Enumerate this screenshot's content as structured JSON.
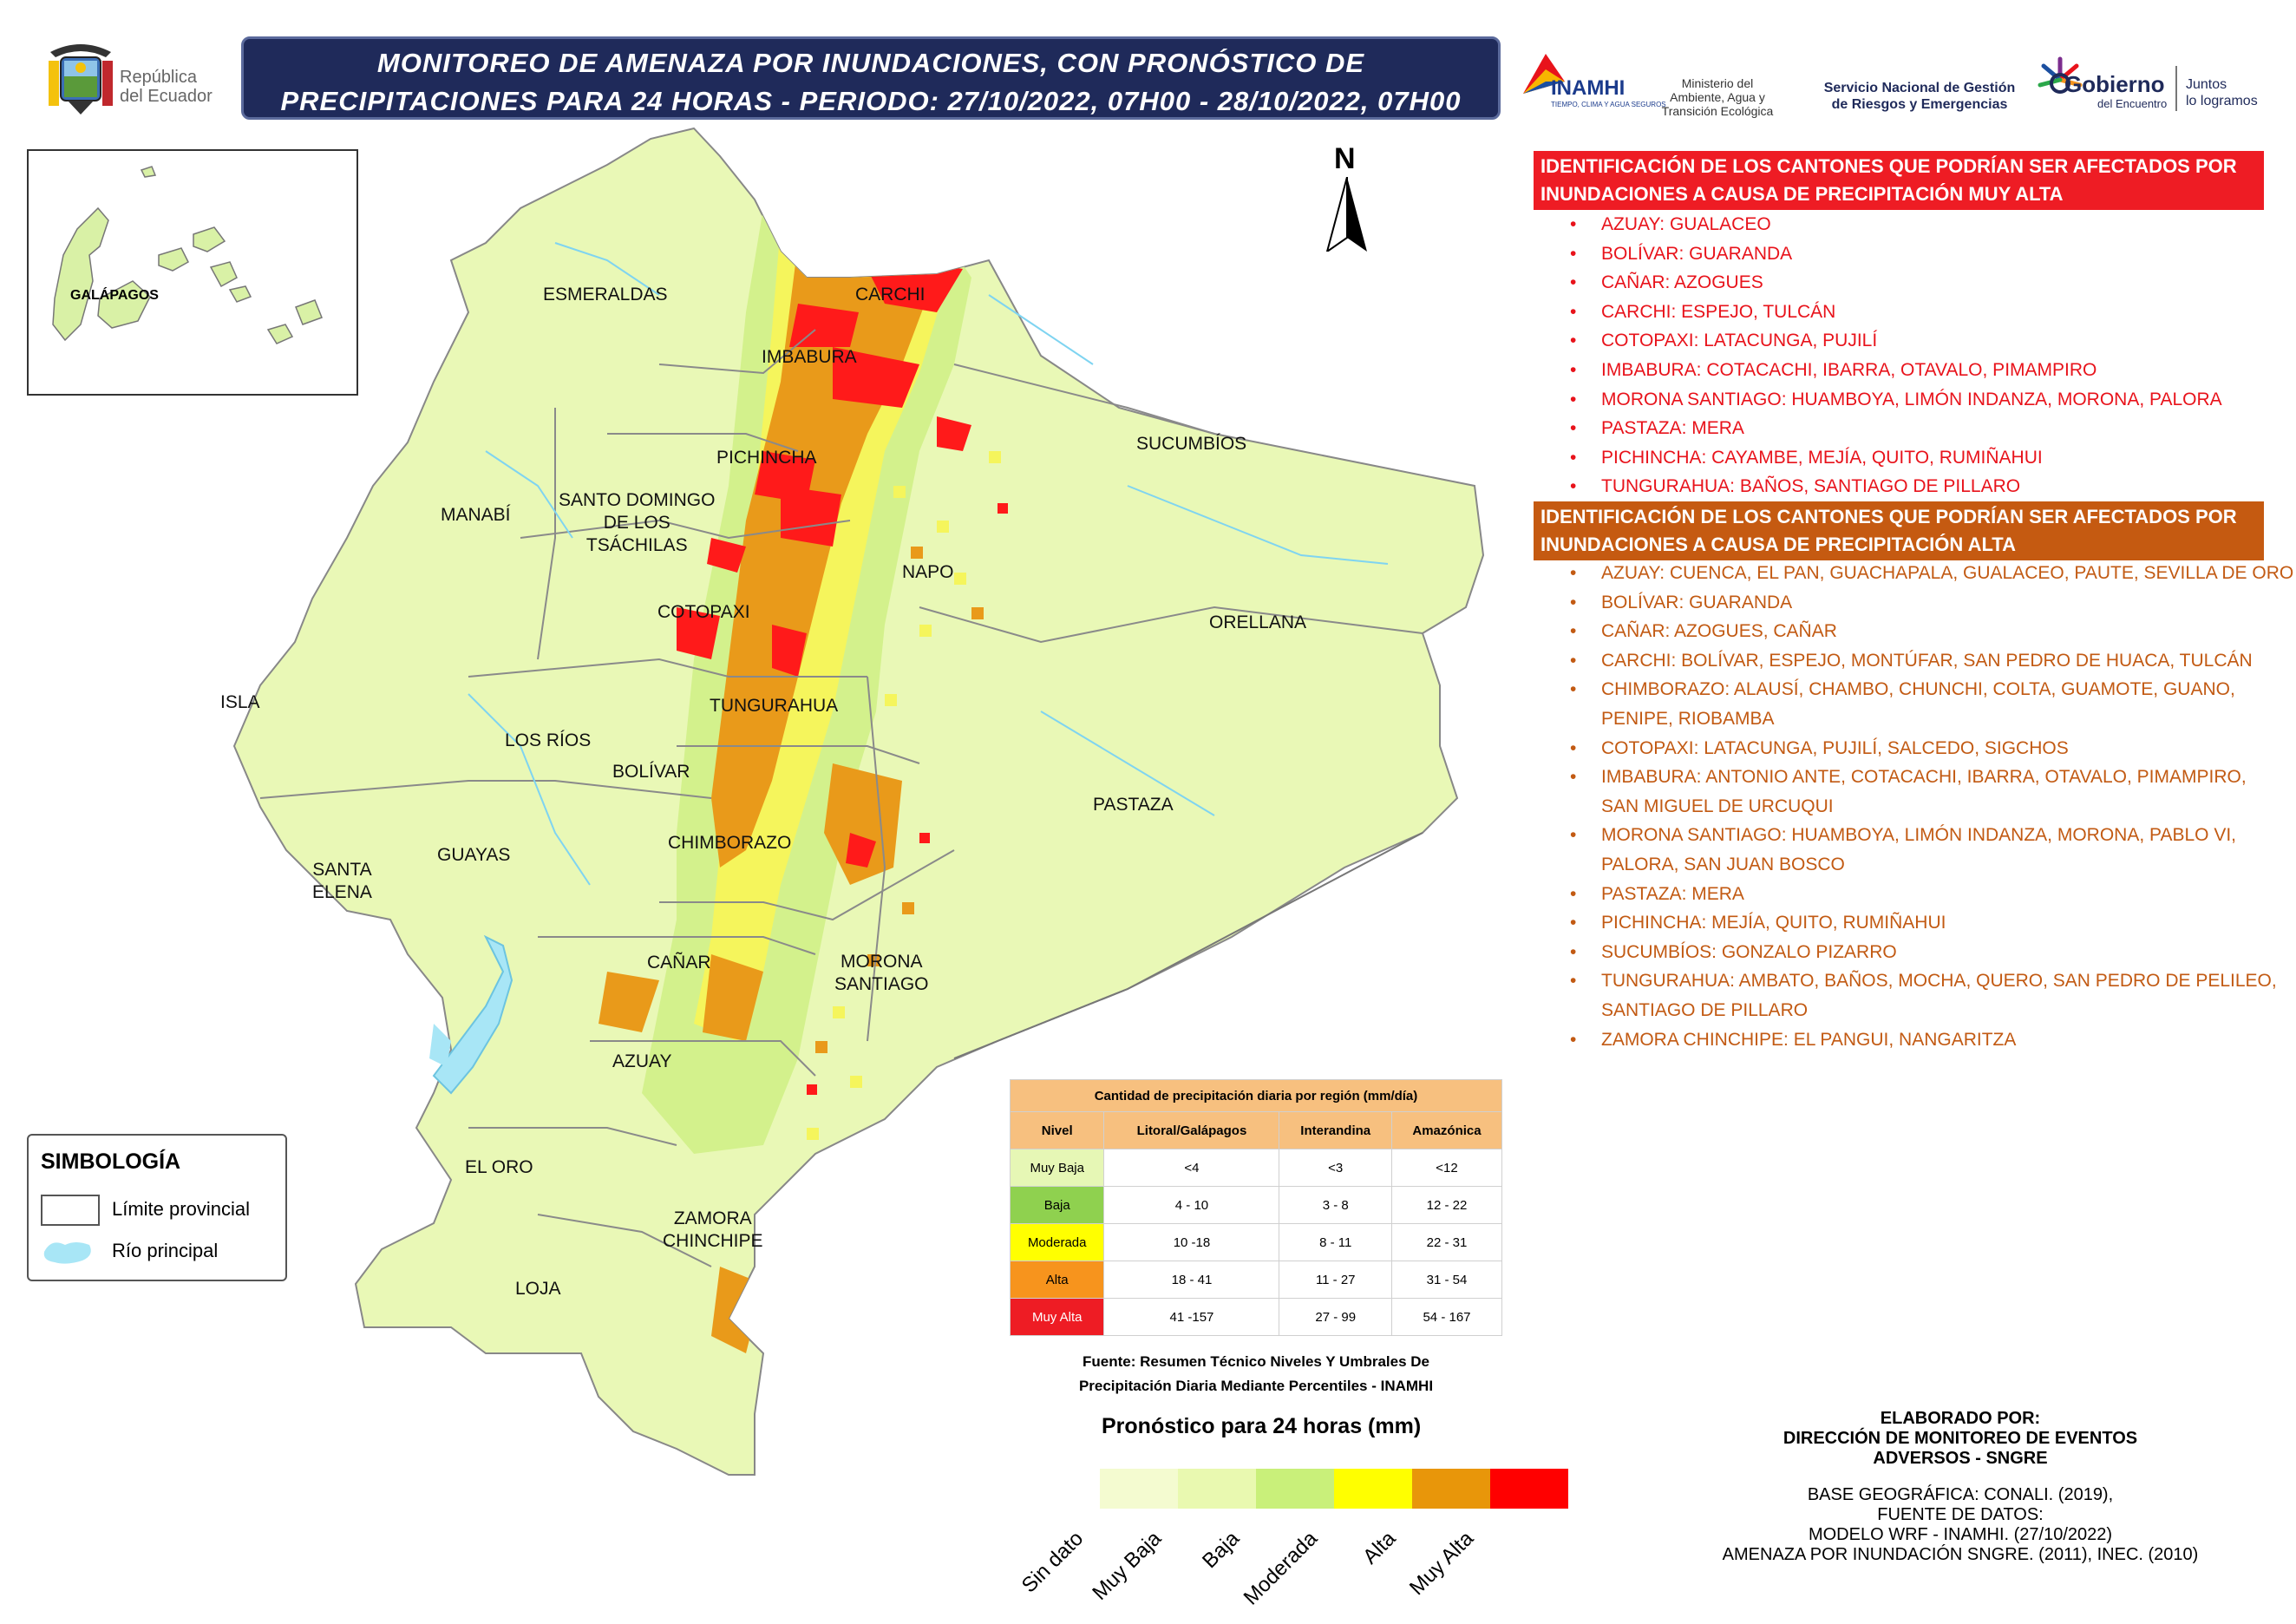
{
  "header": {
    "title_line1": "MONITOREO DE AMENAZA POR INUNDACIONES, CON PRONÓSTICO DE",
    "title_line2": "PRECIPITACIONES  PARA 24  HORAS - PERIODO: 27/10/2022, 07H00 - 28/10/2022, 07H00",
    "republica_line1": "República",
    "republica_line2": "del Ecuador",
    "inamhi": "INAMHI",
    "inamhi_sub": "TIEMPO, CLIMA Y AGUA SEGUROS",
    "ministerio": [
      "Ministerio del",
      "Ambiente, Agua y",
      "Transición Ecológica"
    ],
    "sngre": [
      "Servicio Nacional de Gestión",
      "de Riesgos y Emergencias"
    ],
    "gobierno": "Gobierno",
    "gobierno_sub": "del Encuentro",
    "juntos": [
      "Juntos",
      "lo logramos"
    ]
  },
  "north_label": "N",
  "inset_label": "GALÁPAGOS",
  "provinces": {
    "esmeraldas": "ESMERALDAS",
    "carchi": "CARCHI",
    "imbabura": "IMBABURA",
    "sucumbios": "SUCUMBÍOS",
    "pichincha": "PICHINCHA",
    "manabi": "MANABÍ",
    "santo_domingo_1": "SANTO DOMINGO",
    "santo_domingo_2": "DE LOS",
    "santo_domingo_3": "TSÁCHILAS",
    "napo": "NAPO",
    "cotopaxi": "COTOPAXI",
    "orellana": "ORELLANA",
    "isla": "ISLA",
    "tungurahua": "TUNGURAHUA",
    "los_rios": "LOS RÍOS",
    "bolivar": "BOLÍVAR",
    "pastaza": "PASTAZA",
    "santa_elena_1": "SANTA",
    "santa_elena_2": "ELENA",
    "guayas": "GUAYAS",
    "chimborazo": "CHIMBORAZO",
    "canar": "CAÑAR",
    "morona_1": "MORONA",
    "morona_2": "SANTIAGO",
    "azuay": "AZUAY",
    "el_oro": "EL ORO",
    "zamora_1": "ZAMORA",
    "zamora_2": "CHINCHIPE",
    "loja": "LOJA"
  },
  "muy_alta": {
    "header_line1": "IDENTIFICACIÓN DE LOS CANTONES QUE PODRÍAN SER AFECTADOS POR",
    "header_line2": "INUNDACIONES A CAUSA DE  PRECIPITACIÓN MUY ALTA",
    "color": "#ee1c24",
    "items": [
      "AZUAY: GUALACEO",
      "BOLÍVAR: GUARANDA",
      "CAÑAR: AZOGUES",
      "CARCHI: ESPEJO, TULCÁN",
      "COTOPAXI: LATACUNGA, PUJILÍ",
      "IMBABURA: COTACACHI, IBARRA, OTAVALO, PIMAMPIRO",
      "MORONA SANTIAGO: HUAMBOYA, LIMÓN INDANZA, MORONA, PALORA",
      "PASTAZA: MERA",
      "PICHINCHA: CAYAMBE, MEJÍA, QUITO, RUMIÑAHUI",
      "TUNGURAHUA: BAÑOS, SANTIAGO DE PILLARO"
    ]
  },
  "alta": {
    "header_line1": "IDENTIFICACIÓN DE LOS CANTONES QUE PODRÍAN SER AFECTADOS POR",
    "header_line2": "INUNDACIONES A CAUSA DE  PRECIPITACIÓN  ALTA",
    "color": "#c55a11",
    "items": [
      "AZUAY: CUENCA, EL PAN, GUACHAPALA, GUALACEO, PAUTE, SEVILLA DE ORO",
      "BOLÍVAR: GUARANDA",
      "CAÑAR: AZOGUES, CAÑAR",
      "CARCHI: BOLÍVAR, ESPEJO, MONTÚFAR, SAN PEDRO DE HUACA, TULCÁN",
      "CHIMBORAZO: ALAUSÍ, CHAMBO, CHUNCHI, COLTA, GUAMOTE, GUANO,",
      "PENIPE, RIOBAMBA",
      "COTOPAXI: LATACUNGA, PUJILÍ, SALCEDO, SIGCHOS",
      "IMBABURA: ANTONIO ANTE, COTACACHI, IBARRA, OTAVALO, PIMAMPIRO,",
      "SAN MIGUEL DE URCUQUI",
      "MORONA SANTIAGO: HUAMBOYA, LIMÓN INDANZA, MORONA, PABLO VI,",
      "PALORA, SAN JUAN BOSCO",
      "PASTAZA: MERA",
      "PICHINCHA: MEJÍA, QUITO, RUMIÑAHUI",
      "SUCUMBÍOS: GONZALO PIZARRO",
      "TUNGURAHUA: AMBATO, BAÑOS, MOCHA, QUERO, SAN PEDRO DE PELILEO,",
      "SANTIAGO DE PILLARO",
      "ZAMORA CHINCHIPE: EL PANGUI, NANGARITZA"
    ]
  },
  "precip_table": {
    "title": "Cantidad de precipitación diaria por región (mm/día)",
    "headers": [
      "Nivel",
      "Litoral/Galápagos",
      "Interandina",
      "Amazónica"
    ],
    "rows": [
      {
        "nivel": "Muy Baja",
        "color": "#e6f7b5",
        "litoral": "<4",
        "interandina": "<3",
        "amazonica": "<12"
      },
      {
        "nivel": "Baja",
        "color": "#8fd14f",
        "litoral": "4 - 10",
        "interandina": "3 - 8",
        "amazonica": "12 - 22"
      },
      {
        "nivel": "Moderada",
        "color": "#ffff00",
        "litoral": "10 -18",
        "interandina": "8 - 11",
        "amazonica": "22 - 31"
      },
      {
        "nivel": "Alta",
        "color": "#f7941d",
        "litoral": "18 - 41",
        "interandina": "11 - 27",
        "amazonica": "31 - 54"
      },
      {
        "nivel": "Muy Alta",
        "color": "#ee1c24",
        "litoral": "41 -157",
        "interandina": "27 - 99",
        "amazonica": "54 - 167"
      }
    ],
    "source_line1": "Fuente: Resumen Técnico Niveles Y Umbrales De",
    "source_line2": "Precipitación Diaria Mediante Percentiles - INAMHI"
  },
  "simbologia": {
    "title": "SIMBOLOGÍA",
    "limite": "Límite provincial",
    "rio": "Río principal"
  },
  "forecast_scale": {
    "title": "Pronóstico para 24 horas (mm)",
    "classes": [
      {
        "label": "Sin dato",
        "color": "#f4fbd0"
      },
      {
        "label": "Muy Baja",
        "color": "#e9f9b0"
      },
      {
        "label": "Baja",
        "color": "#c9f07a"
      },
      {
        "label": "Moderada",
        "color": "#ffff00"
      },
      {
        "label": "Alta",
        "color": "#e8960a"
      },
      {
        "label": "Muy Alta",
        "color": "#ff0000"
      }
    ]
  },
  "credits": {
    "line1": "ELABORADO POR:",
    "line2": "DIRECCIÓN DE MONITOREO DE EVENTOS",
    "line3": "ADVERSOS - SNGRE",
    "line4": "BASE GEOGRÁFICA: CONALI. (2019),",
    "line5": "FUENTE DE DATOS:",
    "line6": "MODELO WRF - INAMHI. (27/10/2022)",
    "line7": "AMENAZA POR INUNDACIÓN SNGRE. (2011), INEC. (2010)"
  }
}
